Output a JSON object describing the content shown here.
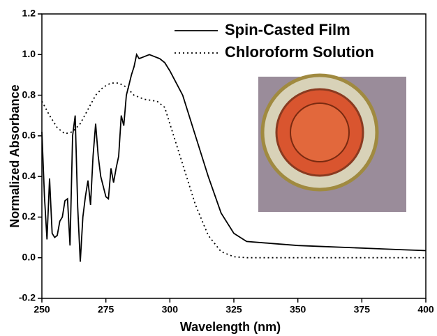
{
  "chart_data": {
    "type": "line",
    "xlabel": "Wavelength (nm)",
    "ylabel": "Normalized Absorbance",
    "xlim": [
      250,
      400
    ],
    "ylim": [
      -0.2,
      1.2
    ],
    "xticks": [
      250,
      275,
      300,
      325,
      350,
      375,
      400
    ],
    "yticks": [
      -0.2,
      {
        "value": 0,
        "label": "0.0"
      },
      0.2,
      0.4,
      0.6,
      0.8,
      {
        "value": 1,
        "label": "1.0"
      },
      1.2
    ],
    "legend": "upper right",
    "series": [
      {
        "name": "Spin-Casted Film",
        "color": "#000000",
        "style": "solid",
        "x": [
          250,
          251,
          252,
          253,
          254,
          255,
          256,
          257,
          258,
          259,
          260,
          261,
          262,
          263,
          264,
          265,
          266,
          267,
          268,
          269,
          270,
          271,
          272,
          273,
          274,
          275,
          276,
          277,
          278,
          279,
          280,
          281,
          282,
          283,
          284,
          285,
          286,
          287,
          288,
          290,
          292,
          294,
          296,
          298,
          300,
          305,
          310,
          315,
          320,
          325,
          330,
          340,
          350,
          360,
          370,
          380,
          390,
          400
        ],
        "values": [
          0.62,
          0.3,
          0.09,
          0.39,
          0.12,
          0.1,
          0.11,
          0.18,
          0.2,
          0.28,
          0.29,
          0.06,
          0.6,
          0.7,
          0.25,
          -0.02,
          0.2,
          0.3,
          0.38,
          0.26,
          0.5,
          0.66,
          0.5,
          0.4,
          0.35,
          0.3,
          0.29,
          0.44,
          0.37,
          0.44,
          0.5,
          0.7,
          0.65,
          0.8,
          0.85,
          0.9,
          0.94,
          1.0,
          0.98,
          0.99,
          1.0,
          0.99,
          0.98,
          0.96,
          0.92,
          0.8,
          0.6,
          0.4,
          0.22,
          0.12,
          0.08,
          0.07,
          0.06,
          0.055,
          0.05,
          0.045,
          0.04,
          0.035
        ]
      },
      {
        "name": "Chloroform Solution",
        "color": "#000000",
        "style": "dotted",
        "x": [
          250,
          253,
          256,
          259,
          262,
          265,
          268,
          271,
          274,
          277,
          280,
          283,
          286,
          290,
          295,
          298,
          300,
          305,
          310,
          315,
          320,
          325,
          330,
          350,
          400
        ],
        "values": [
          0.77,
          0.7,
          0.64,
          0.61,
          0.62,
          0.66,
          0.73,
          0.8,
          0.84,
          0.86,
          0.86,
          0.84,
          0.8,
          0.78,
          0.77,
          0.74,
          0.66,
          0.46,
          0.26,
          0.11,
          0.03,
          0.005,
          0.0,
          0.0,
          0.0
        ]
      }
    ]
  }
}
